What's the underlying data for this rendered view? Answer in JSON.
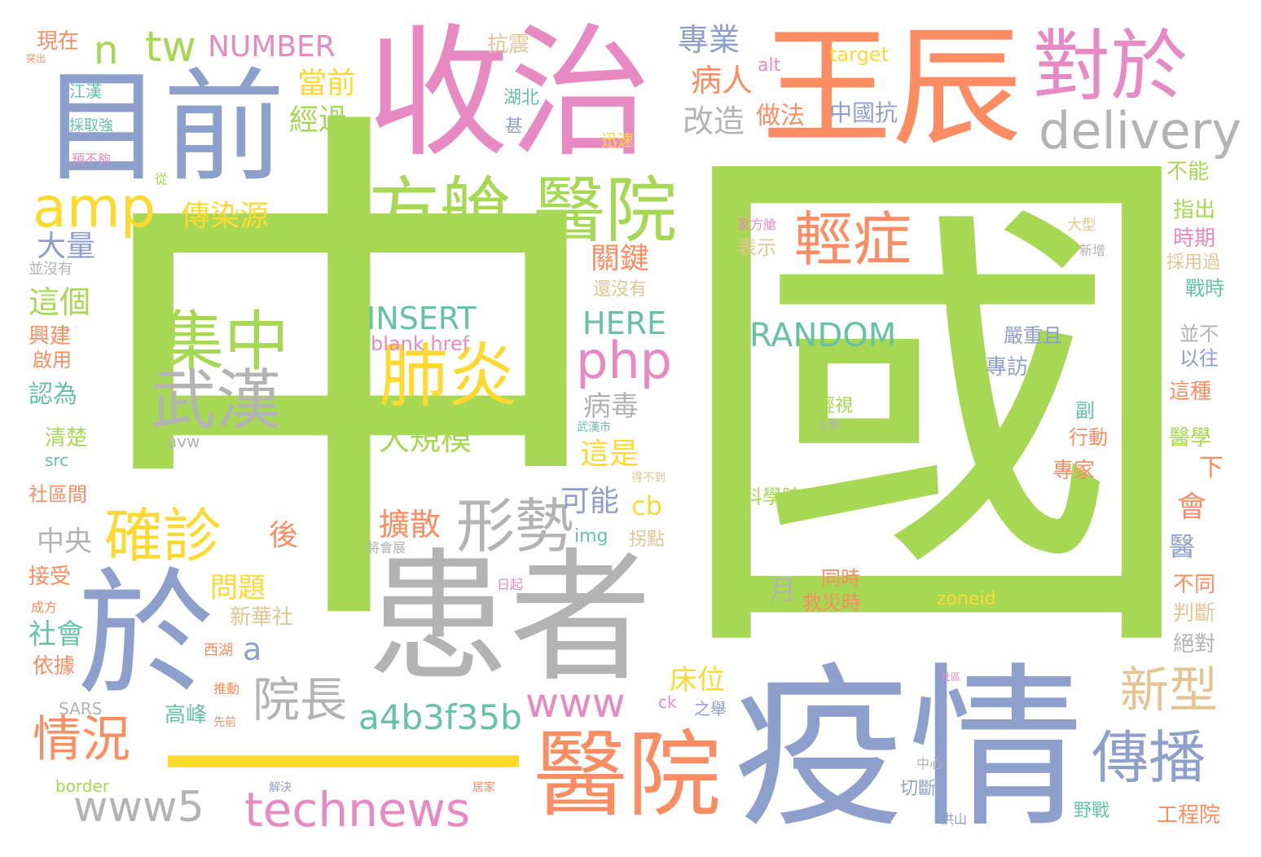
{
  "wordcloud": {
    "colors": {
      "green": "#a6d854",
      "orange": "#fc8d62",
      "blue": "#8da0cb",
      "pink": "#e78ac3",
      "yellow": "#ffd92f",
      "tan": "#e5c494",
      "gray": "#b3b3b3",
      "teal": "#66c2a5"
    },
    "words": {
      "zhong": "中",
      "guo": "國",
      "shouzhi": "收治",
      "huanzhe": "患者",
      "yiqing": "疫情",
      "muqian": "目前",
      "wangchen": "王辰",
      "yu_big": "於",
      "yiyuan_main": "醫院",
      "yiyuan_top": "醫院",
      "duiyu": "對於",
      "fangcang": "方艙",
      "dash": "—",
      "jizhong": "集中",
      "wuhan": "武漢",
      "feiyan": "肺炎",
      "qingzheng": "輕症",
      "delivery": "delivery",
      "amp": "amp",
      "php": "php",
      "queezhen": "確診",
      "xingshi": "形勢",
      "chuanbo": "傳播",
      "xinxing": "新型",
      "technews": "technews",
      "www5": "www5",
      "www": "www",
      "a4b3f35b": "a4b3f35b",
      "qingkuang": "情況",
      "yuanzhang": "院長",
      "tw": "tw",
      "n": "n",
      "NUMBER": "NUMBER",
      "INSERT": "INSERT",
      "RANDOM": "RANDOM",
      "HERE": "HERE",
      "blank_href": "blank href",
      "zhuanye": "專業",
      "dangqian": "當前",
      "jingguo": "經過",
      "bingren": "病人",
      "gaizao": "改造",
      "chuanranyuan": "傳染源",
      "daliang": "大量",
      "zhege": "這個",
      "dagui": "大規模",
      "guanjian": "關鍵",
      "kuosan": "擴散",
      "keneng": "可能",
      "zheshi": "這是",
      "bingdu": "病毒",
      "cb": "cb",
      "zhongyang": "中央",
      "hou": "後",
      "wenti": "問題",
      "shehui": "社會",
      "a_small": "a",
      "chuangwei": "床位",
      "gaofeng": "高峰",
      "xinhuashe": "新華社",
      "kangzhen": "抗震",
      "zuofa": "做法",
      "zhongguokang": "中國抗",
      "alt": "alt",
      "target": "target",
      "xianzai": "現在",
      "jiangHan": "江漢",
      "caiqu": "採取強",
      "yubugou": "預不夠",
      "hubei": "湖北",
      "xunsu": "迅速",
      "shen": "甚",
      "buneng": "不能",
      "zhichu": "指出",
      "shiqi": "時期",
      "caiyongguo": "採用過",
      "zhanshi": "戰時",
      "bingbu": "並不",
      "yiwang": "以往",
      "zhezhong": "這種",
      "yixue": "醫學",
      "xia": "下",
      "hui": "會",
      "yi_med": "醫",
      "butong": "不同",
      "panduan": "判斷",
      "juedui": "絕對",
      "gongchengyuan": "工程院",
      "yezhan": "野戰",
      "qieduan": "切斷",
      "zhuanjia": "專家",
      "xingdong": "行動",
      "fu": "副",
      "zhuanfang": "專訪",
      "yanzhong": "嚴重且",
      "biaoshi": "表示",
      "kexueyuan": "科學院",
      "tongshi": "同時",
      "jiuzaishi": "救災時",
      "zoneid": "zoneid",
      "yue": "月",
      "jiafangcang": "家方艙",
      "daxing": "大型",
      "xinzeng": "新增",
      "bingmeiyou": "並沒有",
      "xingjian": "興建",
      "qiyong": "啟用",
      "renwei": "認為",
      "qingchu": "清楚",
      "src": "src",
      "shequjian": "社區間",
      "jieshou": "接受",
      "yiju": "依據",
      "SARS": "SARS",
      "border": "border",
      "avw": "avw",
      "img": "img",
      "guaidian": "拐點",
      "ck": "ck",
      "zhiju": "之舉",
      "haimeiyou": "還沒有",
      "qingshi": "輕視",
      "zhuyao": "主要",
      "img_small": "img",
      "xihu": "西湖",
      "xianqian": "先前",
      "tuidong": "推動",
      "jiejue": "解決",
      "zhongxin": "中心",
      "hongshan": "洪山",
      "jujia": "居家",
      "shehui_small": "社區",
      "cong": "從",
      "tuchu": "突出",
      "jiangjiang": "將會展",
      "riqi": "日起",
      "budao": "得不到",
      "wuhanshi": "武漢市",
      "chenggong": "成方"
    }
  }
}
